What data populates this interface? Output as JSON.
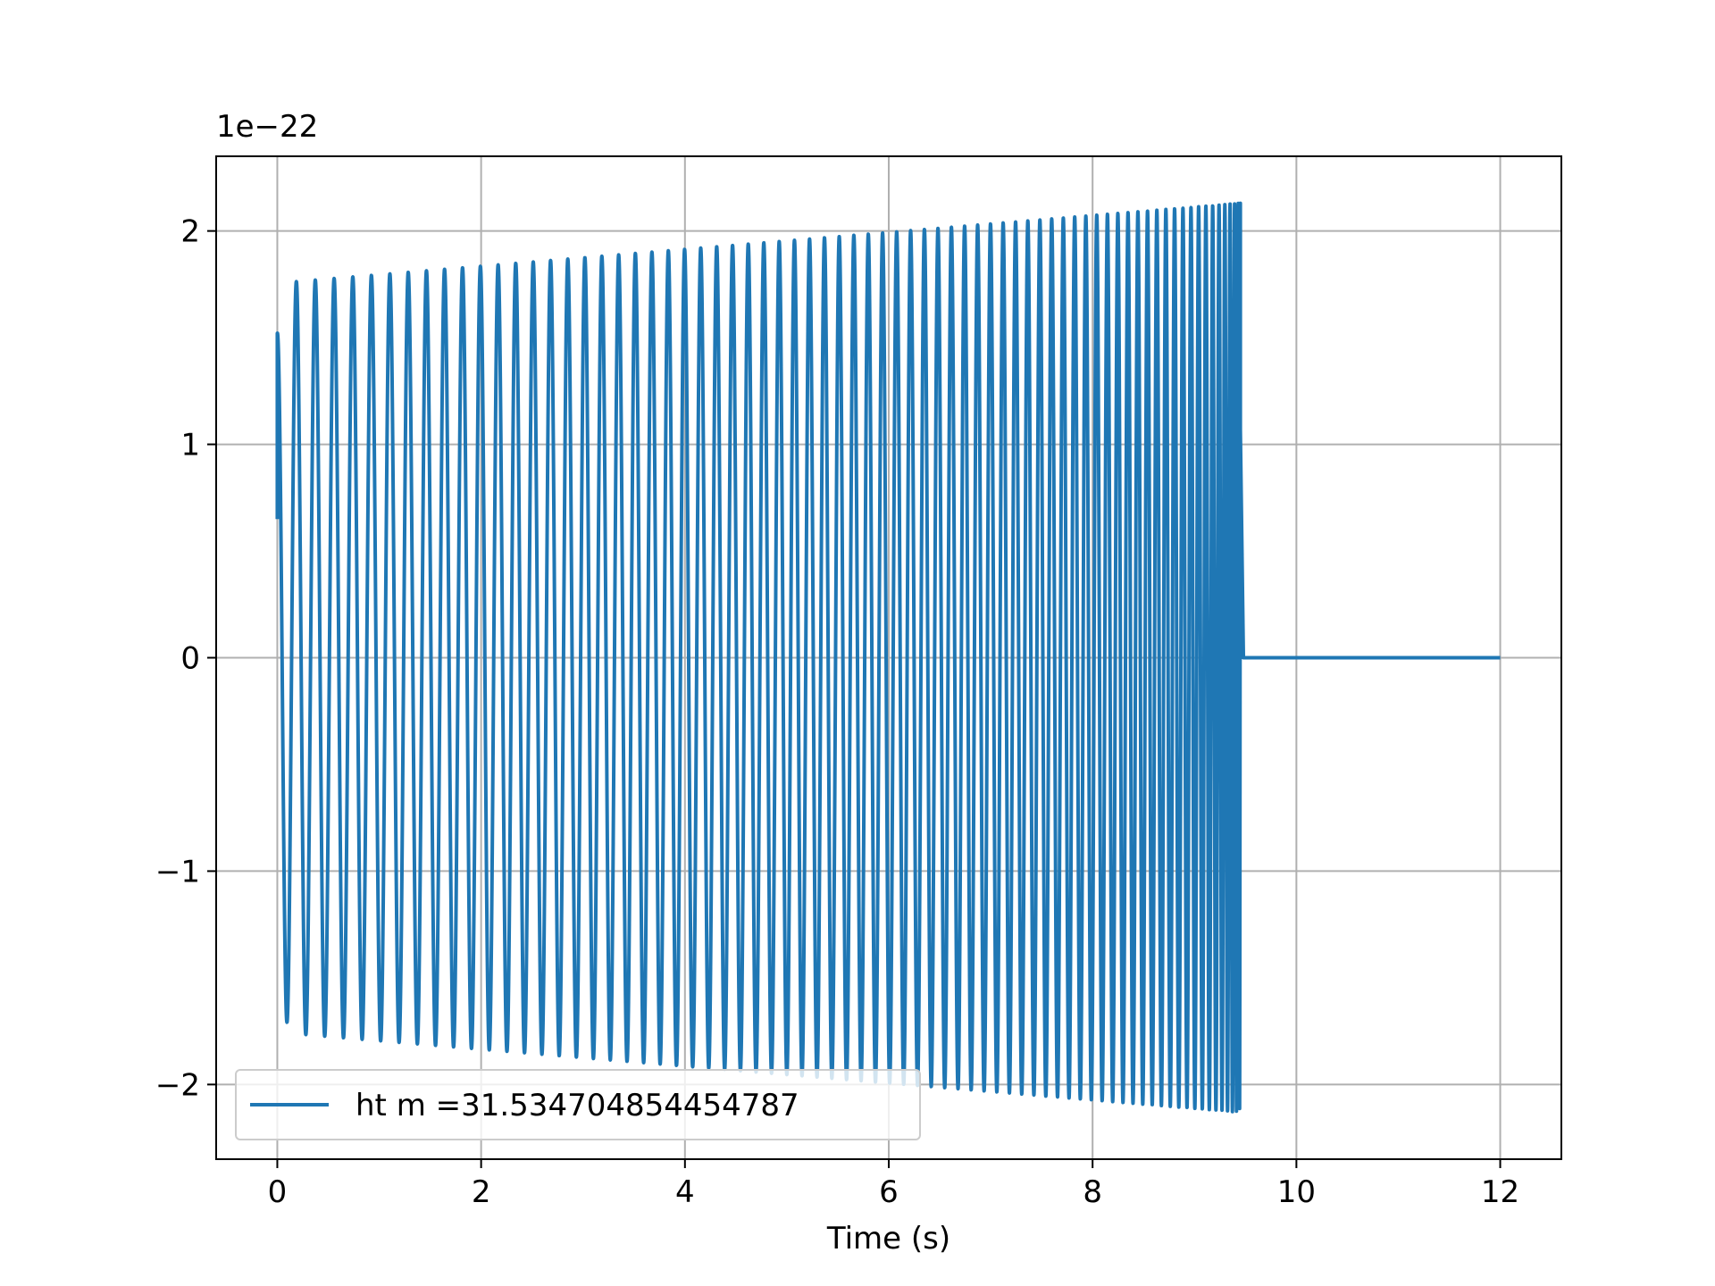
{
  "chart_data": {
    "type": "line",
    "title": "",
    "xlabel": "Time (s)",
    "ylabel": "",
    "y_offset_label": "1e−22",
    "xlim": [
      -0.6,
      12.6
    ],
    "ylim": [
      -2.35,
      2.35
    ],
    "x_ticks": [
      0,
      2,
      4,
      6,
      8,
      10,
      12
    ],
    "x_tick_labels": [
      "0",
      "2",
      "4",
      "6",
      "8",
      "10",
      "12"
    ],
    "y_ticks": [
      -2,
      -1,
      0,
      1,
      2
    ],
    "y_tick_labels": [
      "−2",
      "−1",
      "0",
      "1",
      "2"
    ],
    "grid": true,
    "legend_position": "lower-left",
    "series": [
      {
        "name": "ht m =31.534704854454787",
        "color": "#1f77b4",
        "signal": {
          "t_start": 0,
          "t_end_oscillation": 9.45,
          "t_end": 12,
          "initial_value": 0.65,
          "start_peak": 1.52,
          "envelope_start": 1.76,
          "envelope_end": 2.13,
          "final_value": 1.07,
          "cycle_count": 72,
          "post_value": 0
        }
      }
    ]
  }
}
